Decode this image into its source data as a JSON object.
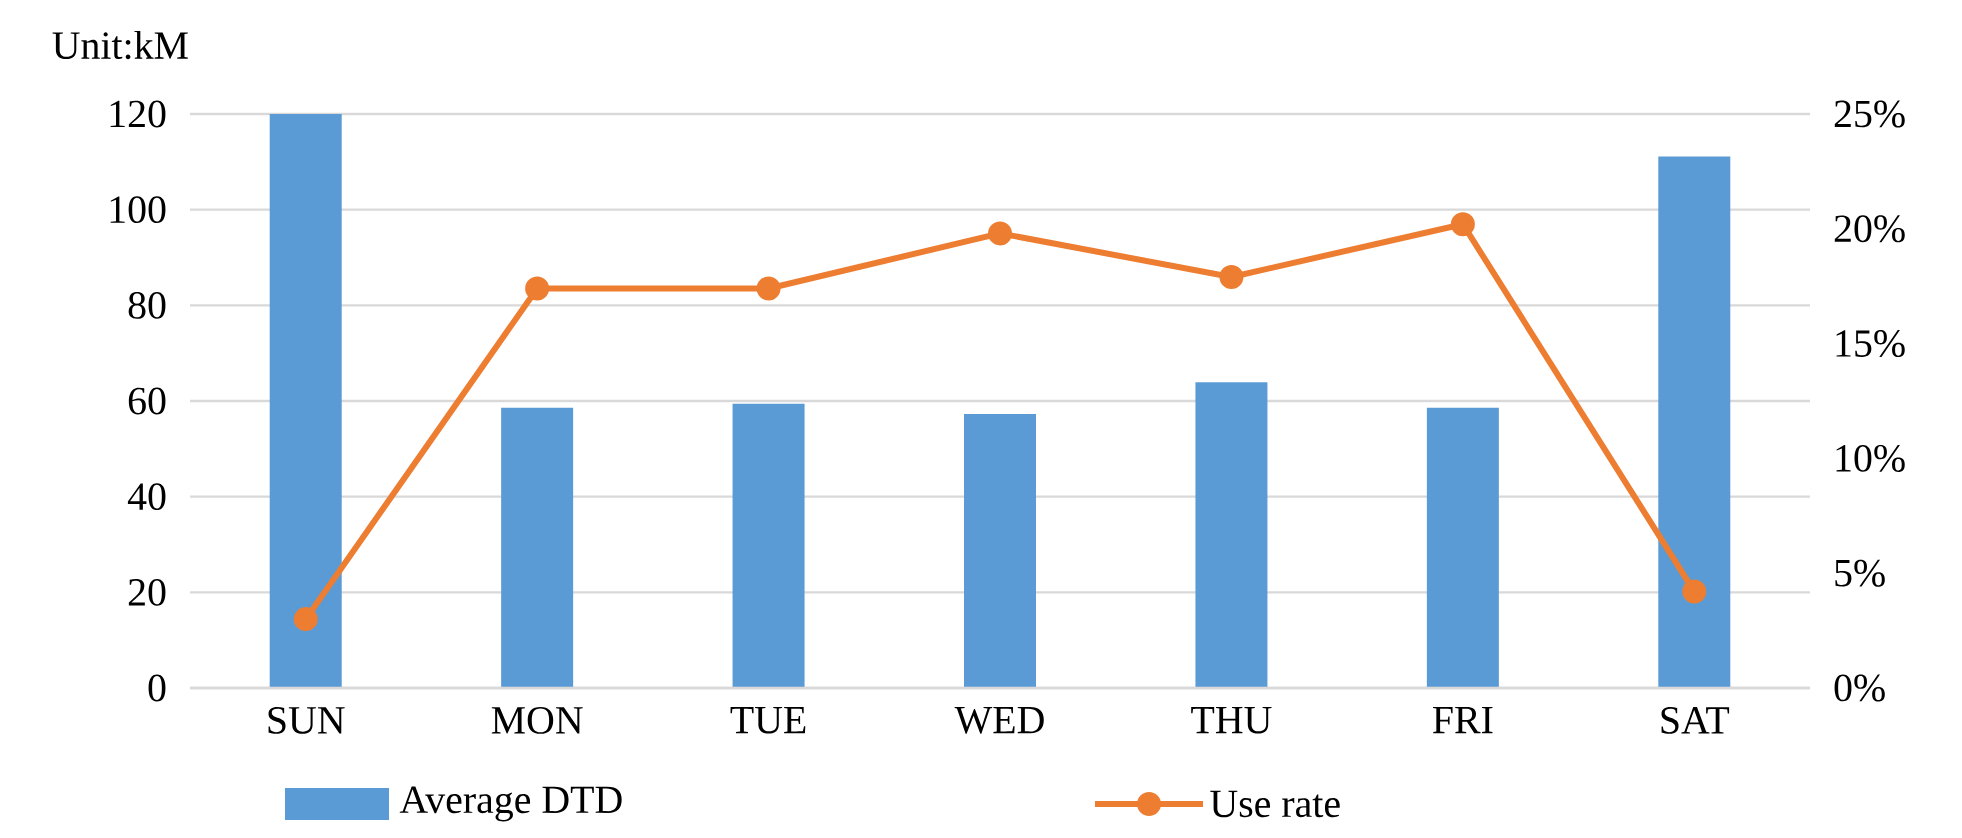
{
  "chart_data": {
    "type": "bar",
    "ylabel": "Unit:kM",
    "categories": [
      "SUN",
      "MON",
      "TUE",
      "WED",
      "THU",
      "FRI",
      "SAT"
    ],
    "series": [
      {
        "name": "Average DTD",
        "color": "#5b9bd5",
        "values": [
          120,
          58.6,
          59.4,
          57.3,
          63.9,
          58.6,
          111.1
        ]
      },
      {
        "name": "Use rate",
        "type": "line",
        "axis": "y2",
        "color": "#ed7d31",
        "values": [
          3.0,
          17.4,
          17.4,
          19.8,
          17.9,
          20.2,
          4.2
        ]
      }
    ],
    "ylim": [
      0,
      120
    ],
    "yticks": [
      0,
      20,
      40,
      60,
      80,
      100,
      120
    ],
    "y2lim": [
      0,
      25
    ],
    "y2ticks": [
      {
        "value": 0,
        "label": "0%"
      },
      {
        "value": 5,
        "label": "5%"
      },
      {
        "value": 10,
        "label": "10%"
      },
      {
        "value": 15,
        "label": "15%"
      },
      {
        "value": 20,
        "label": "20%"
      },
      {
        "value": 25,
        "label": "25%"
      }
    ],
    "grid": "y",
    "legend": "bottom",
    "marker": "circle"
  }
}
